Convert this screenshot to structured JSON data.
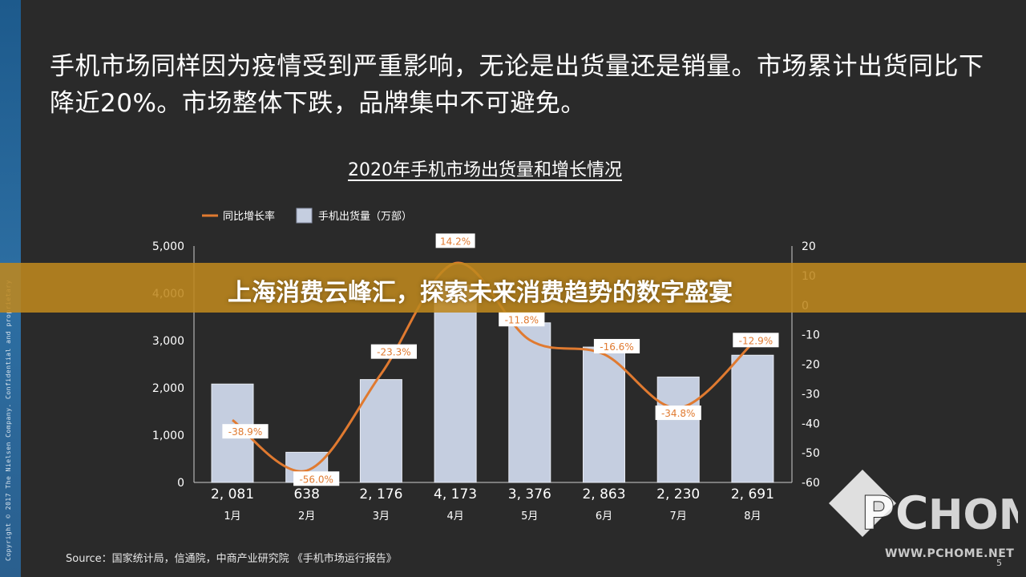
{
  "headline": "手机市场同样因为疫情受到严重影响，无论是出货量还是销量。市场累计出货同比下降近20%。市场整体下跌，品牌集中不可避免。",
  "sidebar_text": "Copyright © 2017 The Nielsen Company. Confidential and proprietary",
  "banner": "上海消费云峰汇，探索未来消费趋势的数字盛宴",
  "source": "Source：国家统计局，信通院，中商产业研究院 《手机市场运行报告》",
  "page_number": "5",
  "logo": {
    "name": "PCHOME",
    "url": "WWW.PCHOME.NET"
  },
  "colors": {
    "bar": "#c5cee0",
    "line": "#e07a30",
    "label_bg": "#ffffff",
    "label_text": "#e07a30",
    "banner": "#be871e"
  },
  "chart_data": {
    "type": "bar",
    "title": "2020年手机市场出货量和增长情况",
    "categories": [
      "1月",
      "2月",
      "3月",
      "4月",
      "5月",
      "6月",
      "7月",
      "8月"
    ],
    "series": [
      {
        "name": "手机出货量（万部）",
        "type": "bar",
        "axis": "left",
        "values": [
          2081,
          638,
          2176,
          4173,
          3376,
          2863,
          2230,
          2691
        ],
        "value_labels": [
          "2, 081",
          "638",
          "2, 176",
          "4, 173",
          "3, 376",
          "2, 863",
          "2, 230",
          "2, 691"
        ]
      },
      {
        "name": "同比增长率",
        "type": "line",
        "axis": "right",
        "values": [
          -38.9,
          -56.0,
          -23.3,
          14.2,
          -11.8,
          -16.6,
          -34.8,
          -12.9
        ],
        "value_labels": [
          "-38.9%",
          "-56.0%",
          "-23.3%",
          "14.2%",
          "-11.8%",
          "-16.6%",
          "-34.8%",
          "-12.9%"
        ]
      }
    ],
    "y_left": {
      "range": [
        0,
        5000
      ],
      "ticks": [
        "0",
        "1,000",
        "2,000",
        "3,000",
        "4,000",
        "5,000"
      ]
    },
    "y_right": {
      "range": [
        -60,
        20
      ],
      "ticks": [
        "-60",
        "-50",
        "-40",
        "-30",
        "-20",
        "-10",
        "0",
        "10",
        "20"
      ]
    },
    "legend_position": "top-left",
    "grid": false
  }
}
